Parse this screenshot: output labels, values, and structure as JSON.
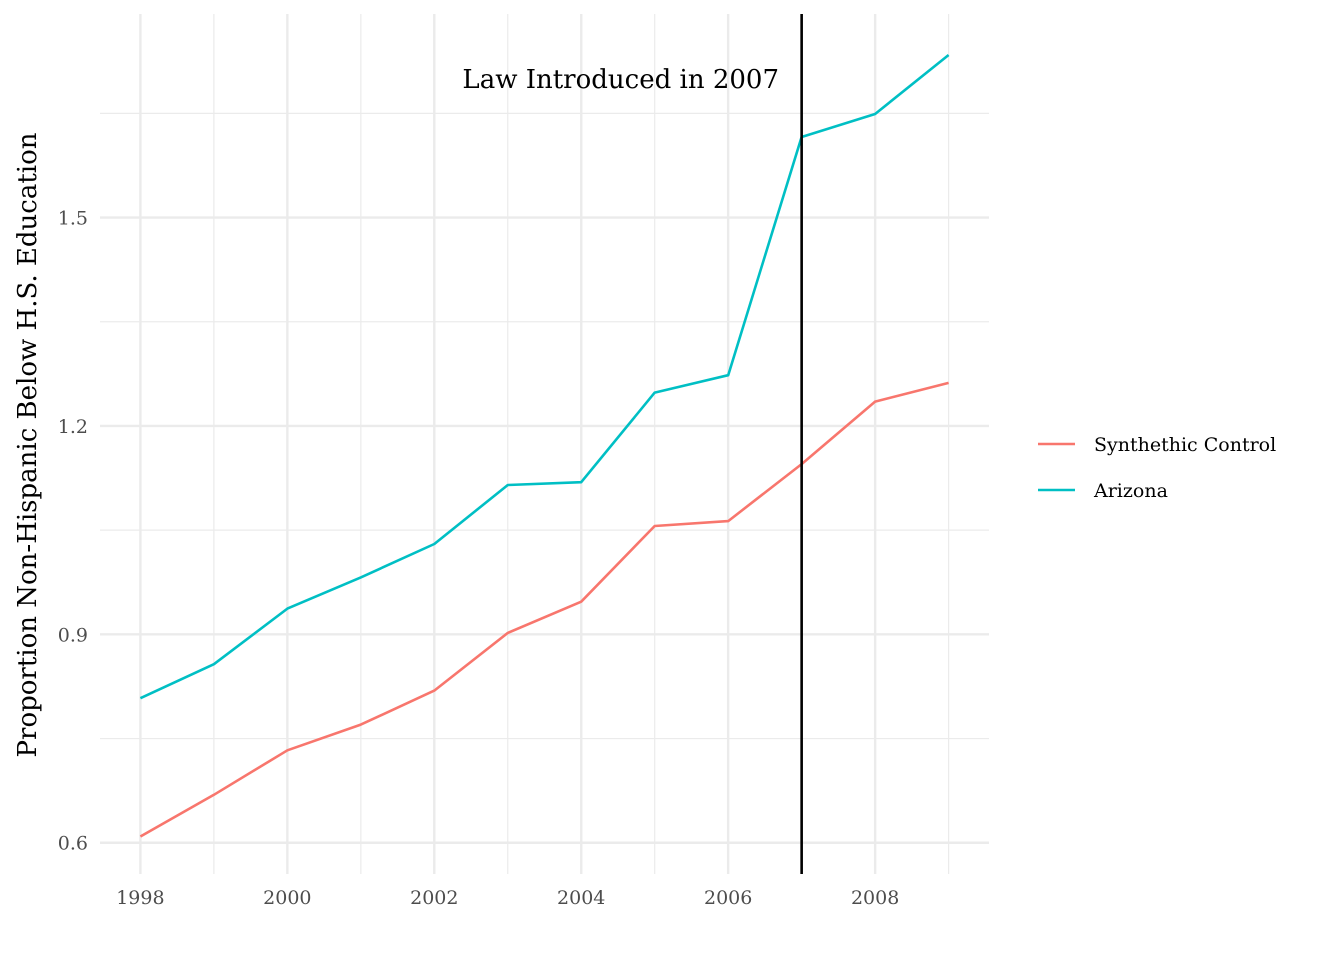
{
  "chart_data": {
    "type": "line",
    "title": "",
    "xlabel": "",
    "ylabel": "Proportion Non-Hispanic Below H.S. Education",
    "x": [
      1998,
      1999,
      2000,
      2001,
      2002,
      2003,
      2004,
      2005,
      2006,
      2007,
      2008,
      2009
    ],
    "x_ticks": [
      "1998",
      "2000",
      "2002",
      "2004",
      "2006",
      "2008"
    ],
    "y_ticks": [
      "0.6",
      "0.9",
      "1.2",
      "1.5"
    ],
    "xlim": [
      1997.45,
      2009.55
    ],
    "ylim": [
      0.555,
      1.793
    ],
    "grid": true,
    "legend_position": "right",
    "series": [
      {
        "name": "Synthethic Control",
        "color": "#F8766D",
        "values": [
          0.609,
          0.669,
          0.733,
          0.77,
          0.819,
          0.902,
          0.947,
          1.056,
          1.063,
          1.145,
          1.235,
          1.262
        ]
      },
      {
        "name": "Arizona",
        "color": "#00BFC4",
        "values": [
          0.808,
          0.857,
          0.937,
          0.982,
          1.03,
          1.115,
          1.119,
          1.248,
          1.273,
          1.616,
          1.649,
          1.734
        ]
      }
    ],
    "vline": {
      "x": 2007,
      "color": "#000000",
      "label": "Law Introduced in 2007"
    },
    "grid_color": "#ebebeb"
  }
}
